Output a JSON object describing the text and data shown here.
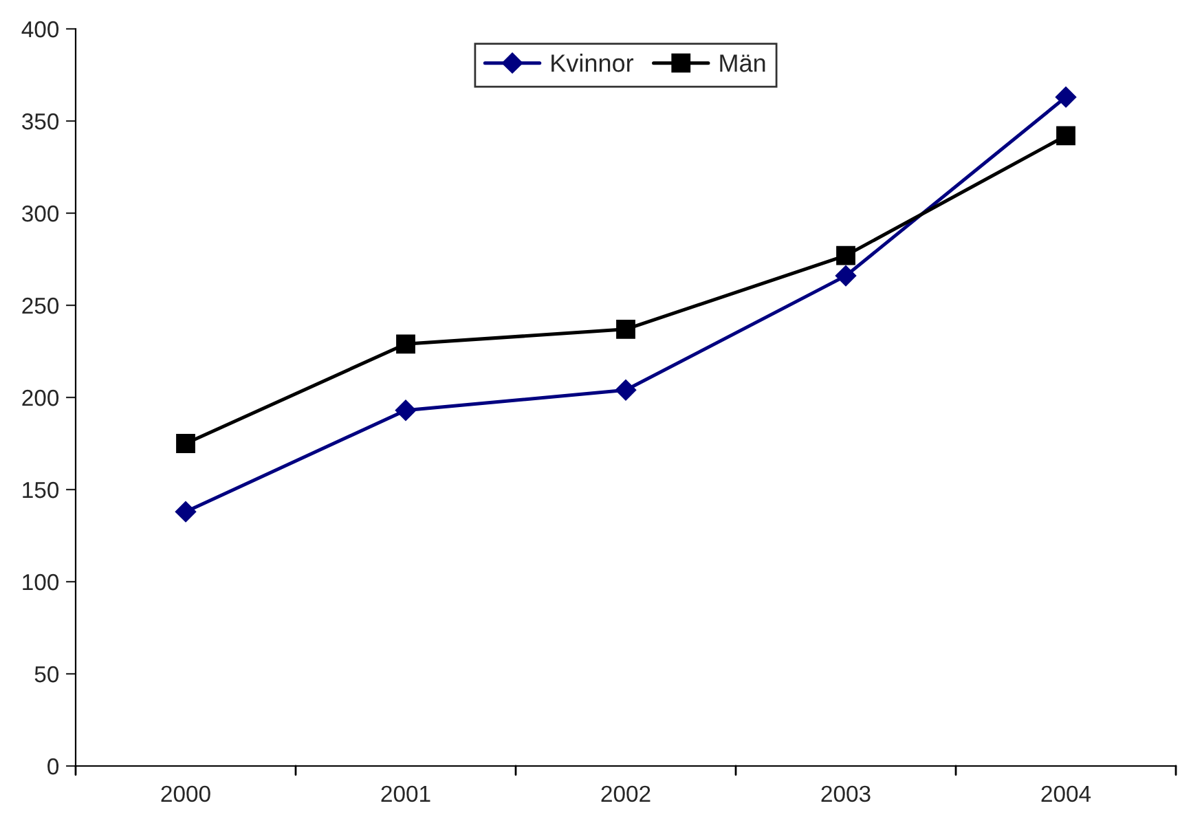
{
  "chart_data": {
    "type": "line",
    "categories": [
      "2000",
      "2001",
      "2002",
      "2003",
      "2004"
    ],
    "series": [
      {
        "name": "Kvinnor",
        "color": "#000080",
        "marker": "diamond",
        "values": [
          138,
          193,
          204,
          266,
          363
        ]
      },
      {
        "name": "Män",
        "color": "#000000",
        "marker": "square",
        "values": [
          175,
          229,
          237,
          277,
          342
        ]
      }
    ],
    "ylim": [
      0,
      400
    ],
    "yticks": [
      0,
      50,
      100,
      150,
      200,
      250,
      300,
      350,
      400
    ],
    "grid": false,
    "legend": "top"
  }
}
